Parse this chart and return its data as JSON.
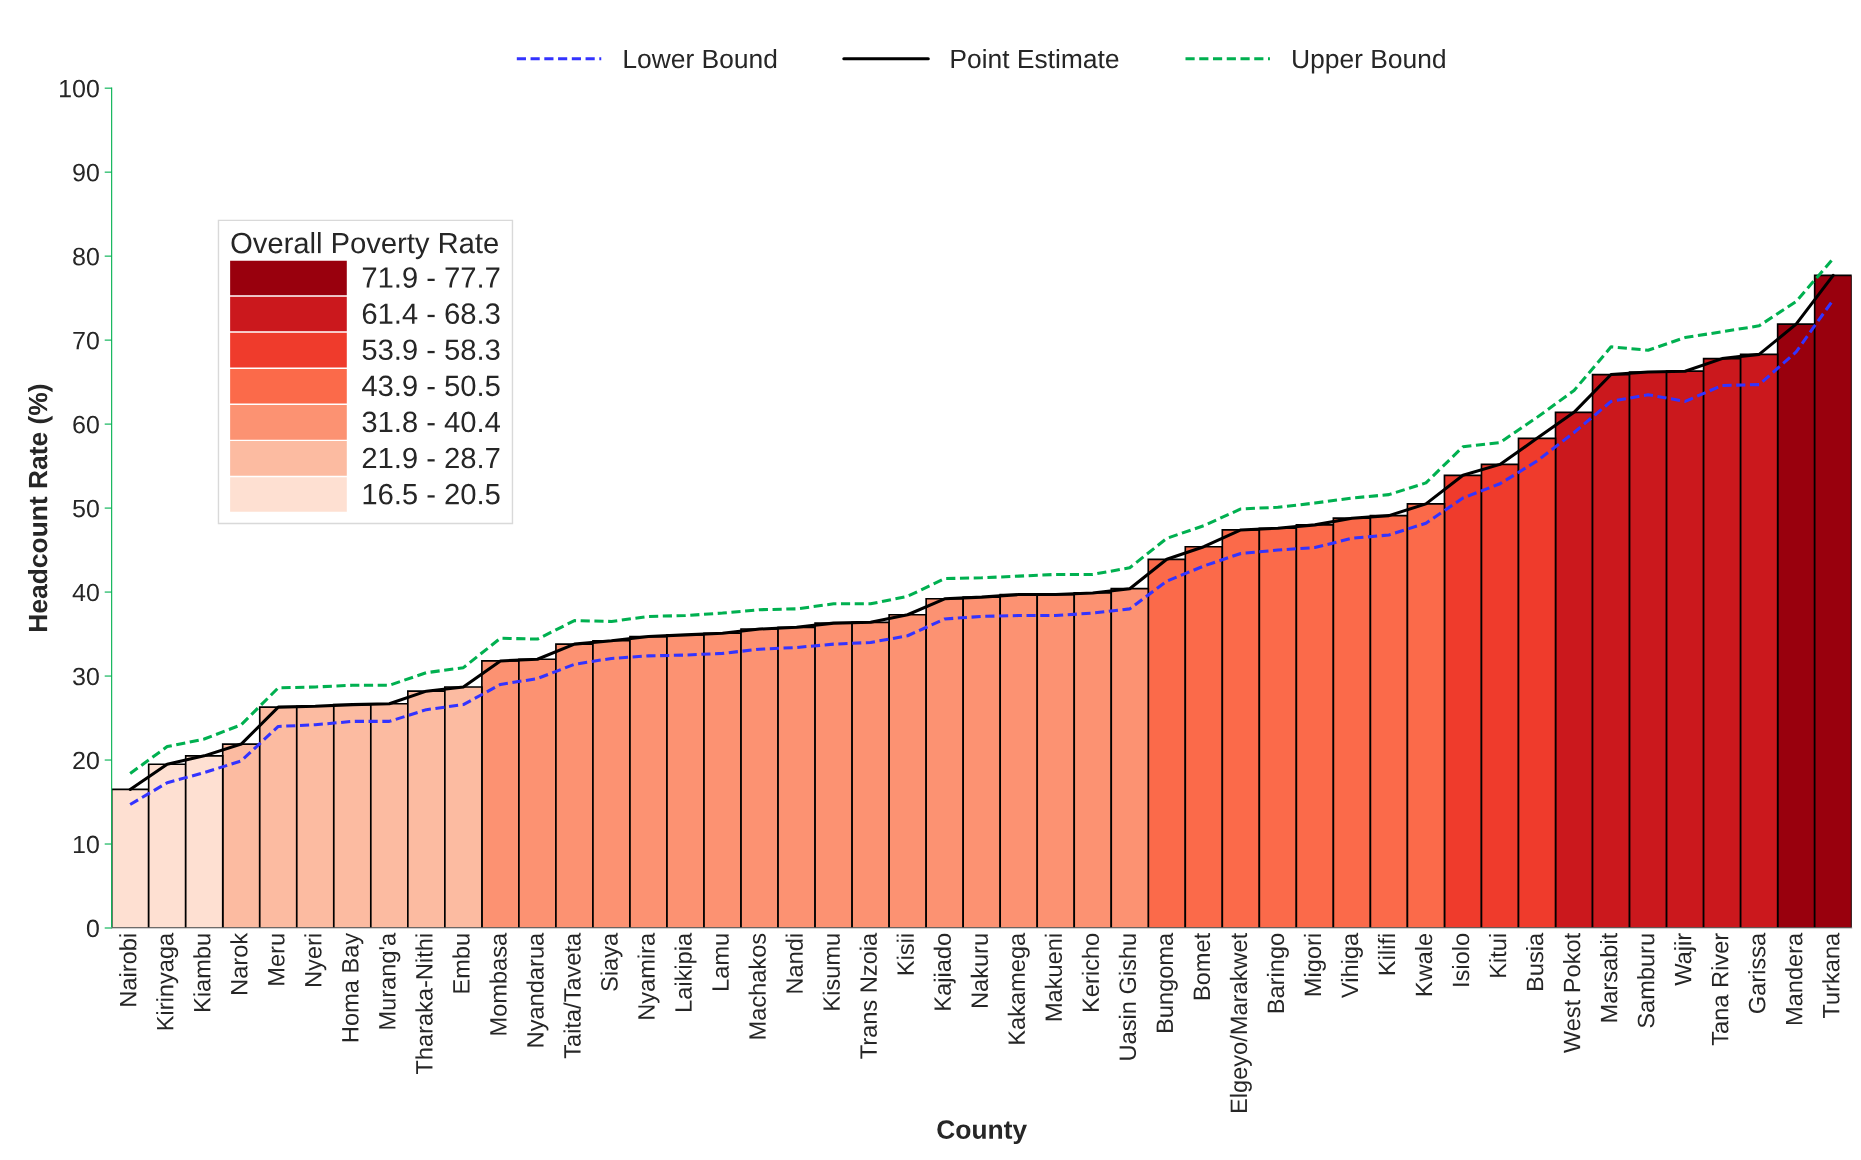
{
  "chart_data": {
    "type": "bar",
    "xlabel": "County",
    "ylabel": "Headcount Rate (%)",
    "legend_title": "Overall Poverty Rate",
    "categories": [
      "Nairobi",
      "Kirinyaga",
      "Kiambu",
      "Narok",
      "Meru",
      "Nyeri",
      "Homa Bay",
      "Murang'a",
      "Tharaka-Nithi",
      "Embu",
      "Mombasa",
      "Nyandarua",
      "Taita/Taveta",
      "Siaya",
      "Nyamira",
      "Laikipia",
      "Lamu",
      "Machakos",
      "Nandi",
      "Kisumu",
      "Trans Nzoia",
      "Kisii",
      "Kajiado",
      "Nakuru",
      "Kakamega",
      "Makueni",
      "Kericho",
      "Uasin Gishu",
      "Bungoma",
      "Bomet",
      "Elgeyo/Marakwet",
      "Baringo",
      "Migori",
      "Vihiga",
      "Kilifi",
      "Kwale",
      "Isiolo",
      "Kitui",
      "Busia",
      "West Pokot",
      "Marsabit",
      "Samburu",
      "Wajir",
      "Tana River",
      "Garissa",
      "Mandera",
      "Turkana"
    ],
    "series": [
      {
        "name": "71.9 - 77.7",
        "color": "#99000d",
        "values": [
          null,
          null,
          null,
          null,
          null,
          null,
          null,
          null,
          null,
          null,
          null,
          null,
          null,
          null,
          null,
          null,
          null,
          null,
          null,
          null,
          null,
          null,
          null,
          null,
          null,
          null,
          null,
          null,
          null,
          null,
          null,
          null,
          null,
          null,
          null,
          null,
          null,
          null,
          null,
          null,
          null,
          null,
          null,
          null,
          null,
          71.9,
          77.7
        ]
      },
      {
        "name": "61.4 - 68.3",
        "color": "#cb181d",
        "values": [
          null,
          null,
          null,
          null,
          null,
          null,
          null,
          null,
          null,
          null,
          null,
          null,
          null,
          null,
          null,
          null,
          null,
          null,
          null,
          null,
          null,
          null,
          null,
          null,
          null,
          null,
          null,
          null,
          null,
          null,
          null,
          null,
          null,
          null,
          null,
          null,
          null,
          null,
          null,
          61.4,
          65.9,
          66.2,
          66.3,
          67.8,
          68.3,
          null,
          null
        ]
      },
      {
        "name": "53.9 - 58.3",
        "color": "#ef3b2c",
        "values": [
          null,
          null,
          null,
          null,
          null,
          null,
          null,
          null,
          null,
          null,
          null,
          null,
          null,
          null,
          null,
          null,
          null,
          null,
          null,
          null,
          null,
          null,
          null,
          null,
          null,
          null,
          null,
          null,
          null,
          null,
          null,
          null,
          null,
          null,
          null,
          null,
          53.9,
          55.2,
          58.3,
          null,
          null,
          null,
          null,
          null,
          null,
          null,
          null
        ]
      },
      {
        "name": "43.9 - 50.5",
        "color": "#fb6a4a",
        "values": [
          null,
          null,
          null,
          null,
          null,
          null,
          null,
          null,
          null,
          null,
          null,
          null,
          null,
          null,
          null,
          null,
          null,
          null,
          null,
          null,
          null,
          null,
          null,
          null,
          null,
          null,
          null,
          null,
          43.9,
          45.4,
          47.4,
          47.6,
          48.0,
          48.8,
          49.1,
          50.5,
          null,
          null,
          null,
          null,
          null,
          null,
          null,
          null,
          null,
          null,
          null
        ]
      },
      {
        "name": "31.8 - 40.4",
        "color": "#fc9272",
        "values": [
          null,
          null,
          null,
          null,
          null,
          null,
          null,
          null,
          null,
          null,
          31.8,
          32.0,
          33.8,
          34.2,
          34.7,
          34.9,
          35.1,
          35.6,
          35.8,
          36.3,
          36.4,
          37.3,
          39.2,
          39.4,
          39.7,
          39.7,
          39.9,
          40.4,
          null,
          null,
          null,
          null,
          null,
          null,
          null,
          null,
          null,
          null,
          null,
          null,
          null,
          null,
          null,
          null,
          null,
          null,
          null
        ]
      },
      {
        "name": "21.9 - 28.7",
        "color": "#fcbba1",
        "values": [
          null,
          null,
          null,
          21.9,
          26.3,
          26.4,
          26.6,
          26.7,
          28.2,
          28.7,
          null,
          null,
          null,
          null,
          null,
          null,
          null,
          null,
          null,
          null,
          null,
          null,
          null,
          null,
          null,
          null,
          null,
          null,
          null,
          null,
          null,
          null,
          null,
          null,
          null,
          null,
          null,
          null,
          null,
          null,
          null,
          null,
          null,
          null,
          null,
          null,
          null
        ]
      },
      {
        "name": "16.5 - 20.5",
        "color": "#fee0d2",
        "values": [
          16.5,
          19.5,
          20.5,
          null,
          null,
          null,
          null,
          null,
          null,
          null,
          null,
          null,
          null,
          null,
          null,
          null,
          null,
          null,
          null,
          null,
          null,
          null,
          null,
          null,
          null,
          null,
          null,
          null,
          null,
          null,
          null,
          null,
          null,
          null,
          null,
          null,
          null,
          null,
          null,
          null,
          null,
          null,
          null,
          null,
          null,
          null,
          null
        ]
      },
      {
        "type": "line",
        "name": "Lower Bound",
        "color": "#3333ff",
        "line_style": "dashed",
        "values": [
          14.7,
          17.3,
          18.5,
          19.9,
          24.0,
          24.2,
          24.6,
          24.6,
          26.0,
          26.6,
          29.0,
          29.7,
          31.4,
          32.1,
          32.4,
          32.5,
          32.7,
          33.2,
          33.4,
          33.8,
          34.0,
          34.8,
          36.8,
          37.1,
          37.2,
          37.2,
          37.5,
          38.0,
          41.3,
          43.1,
          44.6,
          45.0,
          45.3,
          46.4,
          46.8,
          48.2,
          51.2,
          52.9,
          55.6,
          59.0,
          62.7,
          63.5,
          62.7,
          64.6,
          64.7,
          68.6,
          74.8
        ]
      },
      {
        "type": "line",
        "name": "Point Estimate",
        "color": "#000000",
        "line_style": "solid",
        "values": [
          16.5,
          19.5,
          20.5,
          21.9,
          26.3,
          26.4,
          26.6,
          26.7,
          28.2,
          28.7,
          31.8,
          32.0,
          33.8,
          34.2,
          34.7,
          34.9,
          35.1,
          35.6,
          35.8,
          36.3,
          36.4,
          37.3,
          39.2,
          39.4,
          39.7,
          39.7,
          39.9,
          40.4,
          43.9,
          45.4,
          47.4,
          47.6,
          48.0,
          48.8,
          49.1,
          50.5,
          53.9,
          55.2,
          58.3,
          61.4,
          65.9,
          66.2,
          66.3,
          67.8,
          68.3,
          71.9,
          77.7
        ]
      },
      {
        "type": "line",
        "name": "Upper Bound",
        "color": "#00b050",
        "line_style": "dashed",
        "values": [
          18.4,
          21.6,
          22.5,
          24.2,
          28.6,
          28.7,
          28.9,
          28.9,
          30.4,
          31.0,
          34.5,
          34.4,
          36.6,
          36.5,
          37.1,
          37.2,
          37.5,
          37.9,
          38.0,
          38.6,
          38.6,
          39.5,
          41.6,
          41.7,
          41.9,
          42.1,
          42.1,
          42.9,
          46.4,
          47.9,
          49.9,
          50.1,
          50.6,
          51.2,
          51.6,
          53.0,
          57.3,
          57.8,
          60.8,
          64.0,
          69.2,
          68.8,
          70.3,
          71.0,
          71.7,
          74.6,
          79.7
        ]
      }
    ],
    "ylim": [
      0,
      100
    ],
    "yticks": [
      0,
      10,
      20,
      30,
      40,
      50,
      60,
      70,
      80,
      90,
      100
    ],
    "grid": false,
    "legend": "top",
    "marker": "none"
  }
}
